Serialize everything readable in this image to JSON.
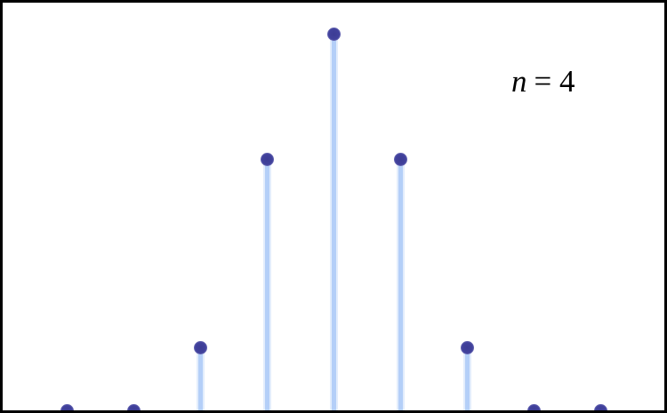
{
  "figure": {
    "background_color": "#ffffff",
    "border_color": "#000000"
  },
  "annotation": {
    "text": "n = 4",
    "variable": "n",
    "equals_value": "= 4",
    "color": "#000000"
  },
  "chart_data": {
    "type": "stem",
    "title": "",
    "xlabel": "",
    "ylabel": "",
    "x": [
      -4,
      -3,
      -2,
      -1,
      0,
      1,
      2,
      3,
      4
    ],
    "values": [
      0,
      0,
      0.0625,
      0.25,
      0.375,
      0.25,
      0.0625,
      0,
      0
    ],
    "ylim": [
      0,
      0.406
    ],
    "grid": false,
    "legend": null,
    "annotations": [
      "n = 4"
    ],
    "marker_color": "#3e3e99",
    "marker_edge_color": "#8a8ac6",
    "stem_color": "#b4cff8",
    "stem_halo_color": "#e3edfc",
    "baseline_axis_visible": false
  }
}
